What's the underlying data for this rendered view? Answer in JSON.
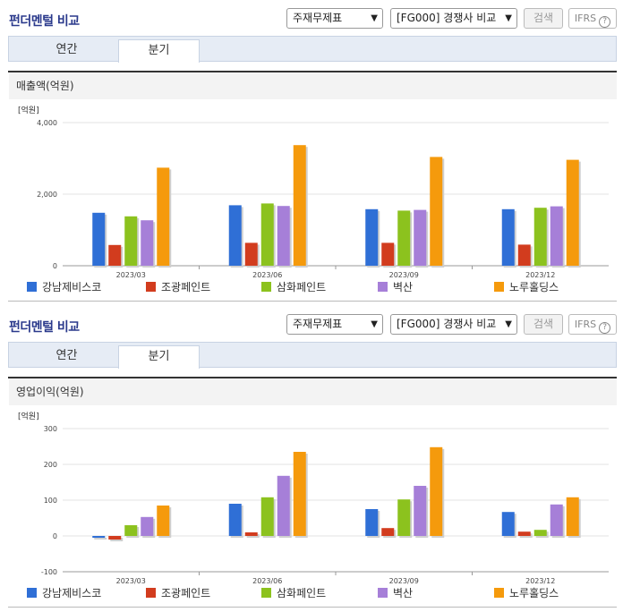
{
  "panels": [
    {
      "title": "펀더멘털 비교",
      "select1": "주재무제표",
      "select2": "[FG000] 경쟁사 비교",
      "search_label": "검색",
      "ifrs_label": "IFRS",
      "ifrs_help": "?",
      "tabs": [
        "연간",
        "분기"
      ],
      "active_tab": "분기",
      "section_title": "매출액(억원)"
    },
    {
      "title": "펀더멘털 비교",
      "select1": "주재무제표",
      "select2": "[FG000] 경쟁사 비교",
      "search_label": "검색",
      "ifrs_label": "IFRS",
      "ifrs_help": "?",
      "tabs": [
        "연간",
        "분기"
      ],
      "active_tab": "분기",
      "section_title": "영업이익(억원)"
    }
  ],
  "chart_data": [
    {
      "type": "bar",
      "title": "매출액(억원)",
      "ylabel": "[억원]",
      "ylim": [
        0,
        4000
      ],
      "yticks": [
        "0",
        "2,000",
        "4,000"
      ],
      "ytick_values": [
        0,
        2000,
        4000
      ],
      "categories": [
        "2023/03",
        "2023/06",
        "2023/09",
        "2023/12"
      ],
      "series": [
        {
          "name": "강남제비스코",
          "color": "#2f6fd6",
          "values": [
            1480,
            1690,
            1580,
            1580
          ]
        },
        {
          "name": "조광페인트",
          "color": "#d23c1e",
          "values": [
            580,
            640,
            640,
            590
          ]
        },
        {
          "name": "삼화페인트",
          "color": "#8cc21e",
          "values": [
            1380,
            1740,
            1540,
            1620
          ]
        },
        {
          "name": "벽산",
          "color": "#a67fd8",
          "values": [
            1270,
            1670,
            1560,
            1660
          ]
        },
        {
          "name": "노루홀딩스",
          "color": "#f59a0c",
          "values": [
            2740,
            3370,
            3040,
            2960
          ]
        }
      ],
      "legend": "bottom"
    },
    {
      "type": "bar",
      "title": "영업이익(억원)",
      "ylabel": "[억원]",
      "ylim": [
        -100,
        300
      ],
      "yticks": [
        "-100",
        "0",
        "100",
        "200",
        "300"
      ],
      "ytick_values": [
        -100,
        0,
        100,
        200,
        300
      ],
      "categories": [
        "2023/03",
        "2023/06",
        "2023/09",
        "2023/12"
      ],
      "series": [
        {
          "name": "강남제비스코",
          "color": "#2f6fd6",
          "values": [
            -5,
            90,
            75,
            67
          ]
        },
        {
          "name": "조광페인트",
          "color": "#d23c1e",
          "values": [
            -10,
            10,
            22,
            12
          ]
        },
        {
          "name": "삼화페인트",
          "color": "#8cc21e",
          "values": [
            30,
            108,
            102,
            17
          ]
        },
        {
          "name": "벽산",
          "color": "#a67fd8",
          "values": [
            53,
            168,
            140,
            88
          ]
        },
        {
          "name": "노루홀딩스",
          "color": "#f59a0c",
          "values": [
            85,
            235,
            248,
            108
          ]
        }
      ],
      "legend": "bottom"
    }
  ]
}
